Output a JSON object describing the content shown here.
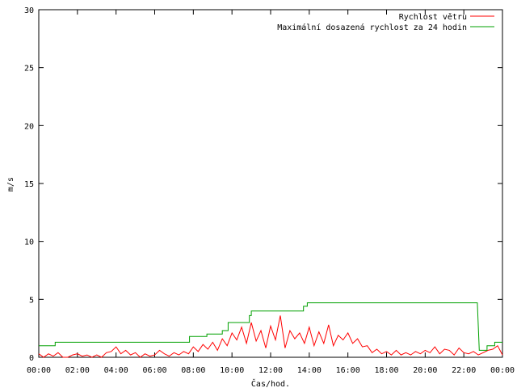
{
  "chart_data": {
    "type": "line",
    "title": "",
    "xlabel": "Čas/hod.",
    "ylabel": "m/s",
    "ylim": [
      0,
      30
    ],
    "yticks": [
      0,
      5,
      10,
      15,
      20,
      25,
      30
    ],
    "xlim": [
      0,
      24
    ],
    "xticks": [
      "00:00",
      "02:00",
      "04:00",
      "06:00",
      "08:00",
      "10:00",
      "12:00",
      "14:00",
      "16:00",
      "18:00",
      "20:00",
      "22:00",
      "00:00"
    ],
    "grid": false,
    "legend_position": "top-right",
    "series": [
      {
        "name": "Rychlost větru",
        "color": "#ff0000",
        "x": [
          0,
          0.25,
          0.5,
          0.75,
          1,
          1.25,
          1.5,
          1.75,
          2,
          2.25,
          2.5,
          2.75,
          3,
          3.25,
          3.5,
          3.75,
          4,
          4.25,
          4.5,
          4.75,
          5,
          5.25,
          5.5,
          5.75,
          6,
          6.25,
          6.5,
          6.75,
          7,
          7.25,
          7.5,
          7.75,
          8,
          8.25,
          8.5,
          8.75,
          9,
          9.25,
          9.5,
          9.75,
          10,
          10.25,
          10.5,
          10.75,
          11,
          11.25,
          11.5,
          11.75,
          12,
          12.25,
          12.5,
          12.75,
          13,
          13.25,
          13.5,
          13.75,
          14,
          14.25,
          14.5,
          14.75,
          15,
          15.25,
          15.5,
          15.75,
          16,
          16.25,
          16.5,
          16.75,
          17,
          17.25,
          17.5,
          17.75,
          18,
          18.25,
          18.5,
          18.75,
          19,
          19.25,
          19.5,
          19.75,
          20,
          20.25,
          20.5,
          20.75,
          21,
          21.25,
          21.5,
          21.75,
          22,
          22.25,
          22.5,
          22.75,
          23,
          23.25,
          23.5,
          23.75,
          24
        ],
        "values": [
          0.3,
          0.0,
          0.3,
          0.1,
          0.4,
          0.0,
          0.0,
          0.2,
          0.3,
          0.1,
          0.2,
          0.0,
          0.2,
          0.0,
          0.4,
          0.5,
          0.9,
          0.3,
          0.6,
          0.2,
          0.4,
          0.0,
          0.3,
          0.1,
          0.2,
          0.6,
          0.3,
          0.1,
          0.4,
          0.2,
          0.5,
          0.3,
          0.9,
          0.5,
          1.1,
          0.7,
          1.3,
          0.6,
          1.6,
          1.0,
          2.1,
          1.5,
          2.6,
          1.2,
          3.0,
          1.4,
          2.3,
          0.8,
          2.7,
          1.5,
          3.6,
          0.8,
          2.3,
          1.6,
          2.1,
          1.2,
          2.6,
          1.0,
          2.2,
          1.2,
          2.8,
          1.0,
          1.9,
          1.5,
          2.1,
          1.2,
          1.6,
          0.9,
          1.0,
          0.4,
          0.7,
          0.3,
          0.5,
          0.2,
          0.6,
          0.2,
          0.4,
          0.2,
          0.5,
          0.3,
          0.6,
          0.4,
          0.9,
          0.3,
          0.7,
          0.6,
          0.2,
          0.8,
          0.4,
          0.3,
          0.5,
          0.2,
          0.4,
          0.6,
          0.7,
          1.0,
          0.2
        ]
      },
      {
        "name": "Maximální dosazená rychlost za 24 hodin",
        "color": "#00a000",
        "x": [
          0,
          0.85,
          0.85,
          7.8,
          7.8,
          8.7,
          8.7,
          9.5,
          9.5,
          9.8,
          9.8,
          10.9,
          10.9,
          11.0,
          11.0,
          13.7,
          13.7,
          13.9,
          13.9,
          22.7,
          22.8,
          22.8,
          23.2,
          23.2,
          23.6,
          23.6,
          24
        ],
        "values": [
          1.0,
          1.0,
          1.3,
          1.3,
          1.8,
          1.8,
          2.0,
          2.0,
          2.3,
          2.3,
          3.0,
          3.0,
          3.6,
          3.6,
          4.0,
          4.0,
          4.4,
          4.4,
          4.7,
          4.7,
          0.6,
          0.6,
          0.6,
          1.0,
          1.0,
          1.3,
          1.3
        ]
      }
    ]
  }
}
